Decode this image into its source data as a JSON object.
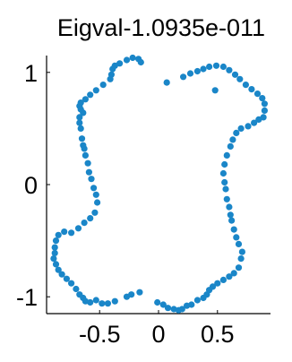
{
  "chart_data": {
    "type": "scatter",
    "title": "Eigval-1.0935e-011",
    "xlabel": "",
    "ylabel": "",
    "xlim": [
      -0.95,
      0.95
    ],
    "ylim": [
      -1.15,
      1.15
    ],
    "xticks": [
      -0.5,
      0,
      0.5
    ],
    "xtick_labels": [
      "-0.5",
      "0",
      "0.5"
    ],
    "yticks": [
      1,
      0,
      -1
    ],
    "ytick_labels": [
      "1",
      "0",
      "-1"
    ],
    "grid": false,
    "colors": {
      "points": "#1a86c8",
      "axis": "#000000"
    },
    "series": [
      {
        "points": [
          [
            -0.27,
            1.11
          ],
          [
            -0.22,
            1.13
          ],
          [
            -0.17,
            1.12
          ],
          [
            -0.15,
            1.09
          ],
          [
            -0.33,
            1.08
          ],
          [
            -0.37,
            1.06
          ],
          [
            -0.39,
            1.03
          ],
          [
            -0.4,
            0.98
          ],
          [
            -0.41,
            0.94
          ],
          [
            -0.47,
            0.89
          ],
          [
            -0.53,
            0.84
          ],
          [
            -0.58,
            0.8
          ],
          [
            -0.62,
            0.76
          ],
          [
            -0.66,
            0.73
          ],
          [
            -0.67,
            0.7
          ],
          [
            -0.66,
            0.67
          ],
          [
            -0.64,
            0.64
          ],
          [
            -0.67,
            0.6
          ],
          [
            -0.67,
            0.55
          ],
          [
            -0.66,
            0.5
          ],
          [
            -0.65,
            0.41
          ],
          [
            -0.64,
            0.35
          ],
          [
            -0.63,
            0.32
          ],
          [
            -0.62,
            0.26
          ],
          [
            -0.6,
            0.19
          ],
          [
            -0.59,
            0.11
          ],
          [
            -0.57,
            0.05
          ],
          [
            -0.55,
            -0.03
          ],
          [
            -0.53,
            -0.09
          ],
          [
            -0.52,
            -0.16
          ],
          [
            -0.54,
            -0.25
          ],
          [
            -0.58,
            -0.3
          ],
          [
            -0.63,
            -0.34
          ],
          [
            -0.68,
            -0.39
          ],
          [
            -0.74,
            -0.43
          ],
          [
            -0.8,
            -0.42
          ],
          [
            -0.85,
            -0.45
          ],
          [
            -0.87,
            -0.5
          ],
          [
            -0.88,
            -0.56
          ],
          [
            -0.88,
            -0.61
          ],
          [
            -0.89,
            -0.66
          ],
          [
            -0.87,
            -0.71
          ],
          [
            -0.85,
            -0.76
          ],
          [
            -0.82,
            -0.8
          ],
          [
            -0.78,
            -0.84
          ],
          [
            -0.74,
            -0.88
          ],
          [
            -0.7,
            -0.93
          ],
          [
            -0.67,
            -0.98
          ],
          [
            -0.64,
            -1.01
          ],
          [
            -0.62,
            -1.04
          ],
          [
            -0.58,
            -1.05
          ],
          [
            -0.53,
            -1.03
          ],
          [
            -0.48,
            -1.06
          ],
          [
            -0.43,
            -1.06
          ],
          [
            -0.37,
            -1.04
          ],
          [
            -0.27,
            -1.0
          ],
          [
            -0.23,
            -0.98
          ],
          [
            -0.16,
            -0.96
          ],
          [
            -0.01,
            -1.05
          ],
          [
            0.04,
            -1.07
          ],
          [
            0.08,
            -1.1
          ],
          [
            0.13,
            -1.11
          ],
          [
            0.17,
            -1.12
          ],
          [
            0.2,
            -1.11
          ],
          [
            0.24,
            -1.08
          ],
          [
            0.28,
            -1.07
          ],
          [
            0.33,
            -1.03
          ],
          [
            0.38,
            -1.01
          ],
          [
            0.41,
            -0.98
          ],
          [
            0.43,
            -0.94
          ],
          [
            0.46,
            -0.91
          ],
          [
            0.5,
            -0.88
          ],
          [
            0.55,
            -0.85
          ],
          [
            0.6,
            -0.82
          ],
          [
            0.64,
            -0.79
          ],
          [
            0.68,
            -0.74
          ],
          [
            0.7,
            -0.66
          ],
          [
            0.71,
            -0.6
          ],
          [
            0.68,
            -0.53
          ],
          [
            0.66,
            -0.47
          ],
          [
            0.64,
            -0.4
          ],
          [
            0.62,
            -0.32
          ],
          [
            0.61,
            -0.27
          ],
          [
            0.6,
            -0.2
          ],
          [
            0.58,
            -0.13
          ],
          [
            0.57,
            -0.04
          ],
          [
            0.56,
            0.02
          ],
          [
            0.55,
            0.1
          ],
          [
            0.56,
            0.18
          ],
          [
            0.58,
            0.26
          ],
          [
            0.61,
            0.34
          ],
          [
            0.63,
            0.4
          ],
          [
            0.66,
            0.46
          ],
          [
            0.7,
            0.5
          ],
          [
            0.76,
            0.52
          ],
          [
            0.81,
            0.55
          ],
          [
            0.85,
            0.58
          ],
          [
            0.89,
            0.6
          ],
          [
            0.9,
            0.66
          ],
          [
            0.9,
            0.72
          ],
          [
            0.88,
            0.77
          ],
          [
            0.84,
            0.81
          ],
          [
            0.79,
            0.85
          ],
          [
            0.74,
            0.89
          ],
          [
            0.69,
            0.94
          ],
          [
            0.65,
            0.98
          ],
          [
            0.6,
            1.02
          ],
          [
            0.55,
            1.05
          ],
          [
            0.49,
            1.06
          ],
          [
            0.43,
            1.05
          ],
          [
            0.38,
            1.03
          ],
          [
            0.33,
            1.01
          ],
          [
            0.27,
            0.99
          ],
          [
            0.21,
            0.96
          ],
          [
            0.07,
            0.91
          ],
          [
            0.48,
            0.84
          ]
        ]
      }
    ]
  }
}
